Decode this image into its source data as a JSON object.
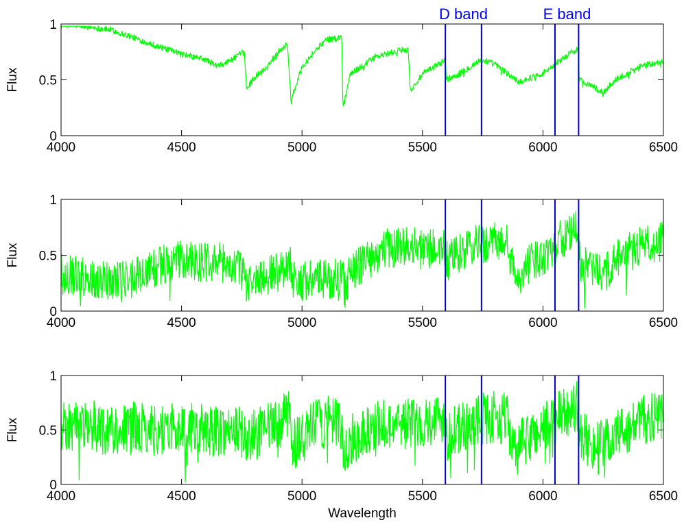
{
  "chart_data": {
    "type": "line",
    "colors": {
      "spectrum": "#00ff00",
      "band_lines": "#0000cc",
      "band_label": "#0000ff"
    },
    "band_labels": [
      {
        "text": "D band",
        "x": 5670
      },
      {
        "text": "E band",
        "x": 6100
      }
    ],
    "band_edges": [
      5595,
      5745,
      6050,
      6148
    ],
    "panels": [
      {
        "ylabel": "Flux",
        "xlabel": "",
        "xlim": [
          4000,
          6500
        ],
        "ylim": [
          0,
          1
        ],
        "xticks": [
          4000,
          4500,
          5000,
          5500,
          6000,
          6500
        ],
        "yticks": [
          0,
          0.5,
          1
        ],
        "grid": false,
        "noise": 0.04,
        "series": [
          {
            "x": [
              4000,
              4100,
              4200,
              4300,
              4400,
              4500,
              4600,
              4650,
              4700,
              4760,
              4770,
              4800,
              4850,
              4900,
              4940,
              4955,
              4960,
              5000,
              5050,
              5100,
              5165,
              5170,
              5200,
              5300,
              5440,
              5450,
              5500,
              5595,
              5600,
              5650,
              5700,
              5745,
              5800,
              5850,
              5900,
              6000,
              6100,
              6148,
              6150,
              6200,
              6250,
              6300,
              6400,
              6500
            ],
            "y": [
              1.0,
              0.98,
              0.95,
              0.88,
              0.8,
              0.73,
              0.68,
              0.62,
              0.67,
              0.75,
              0.42,
              0.52,
              0.6,
              0.75,
              0.82,
              0.28,
              0.35,
              0.62,
              0.75,
              0.86,
              0.88,
              0.25,
              0.55,
              0.7,
              0.78,
              0.4,
              0.55,
              0.68,
              0.5,
              0.55,
              0.62,
              0.68,
              0.64,
              0.56,
              0.48,
              0.56,
              0.72,
              0.78,
              0.5,
              0.45,
              0.38,
              0.5,
              0.62,
              0.66
            ]
          }
        ]
      },
      {
        "ylabel": "Flux",
        "xlabel": "",
        "xlim": [
          4000,
          6500
        ],
        "ylim": [
          0,
          1
        ],
        "xticks": [
          4000,
          4500,
          5000,
          5500,
          6000,
          6500
        ],
        "yticks": [
          0,
          0.5,
          1
        ],
        "grid": false,
        "noise": 0.26,
        "series": [
          {
            "x": [
              4000,
              4100,
              4200,
              4300,
              4400,
              4500,
              4600,
              4700,
              4760,
              4770,
              4800,
              4900,
              4950,
              4960,
              5000,
              5100,
              5165,
              5180,
              5200,
              5300,
              5400,
              5500,
              5595,
              5600,
              5650,
              5700,
              5745,
              5800,
              5850,
              5880,
              5890,
              5900,
              6000,
              6100,
              6148,
              6150,
              6200,
              6250,
              6300,
              6400,
              6500
            ],
            "y": [
              0.35,
              0.3,
              0.28,
              0.3,
              0.4,
              0.45,
              0.45,
              0.42,
              0.35,
              0.22,
              0.28,
              0.35,
              0.45,
              0.28,
              0.28,
              0.28,
              0.3,
              0.2,
              0.35,
              0.5,
              0.6,
              0.55,
              0.56,
              0.45,
              0.5,
              0.58,
              0.6,
              0.62,
              0.6,
              0.35,
              0.18,
              0.35,
              0.5,
              0.68,
              0.72,
              0.45,
              0.38,
              0.32,
              0.45,
              0.58,
              0.63
            ]
          }
        ]
      },
      {
        "ylabel": "Flux",
        "xlabel": "Wavelength",
        "xlim": [
          4000,
          6500
        ],
        "ylim": [
          0,
          1
        ],
        "xticks": [
          4000,
          4500,
          5000,
          5500,
          6000,
          6500
        ],
        "yticks": [
          0,
          0.5,
          1
        ],
        "grid": false,
        "noise": 0.34,
        "series": [
          {
            "x": [
              4000,
              4100,
              4200,
              4300,
              4400,
              4500,
              4600,
              4700,
              4760,
              4770,
              4800,
              4900,
              4950,
              4960,
              5000,
              5050,
              5100,
              5165,
              5170,
              5200,
              5300,
              5400,
              5500,
              5595,
              5600,
              5650,
              5700,
              5745,
              5800,
              5850,
              5880,
              5890,
              5900,
              6000,
              6100,
              6148,
              6150,
              6200,
              6250,
              6300,
              6400,
              6500
            ],
            "y": [
              0.55,
              0.55,
              0.5,
              0.52,
              0.5,
              0.52,
              0.5,
              0.5,
              0.48,
              0.35,
              0.45,
              0.55,
              0.65,
              0.38,
              0.4,
              0.55,
              0.58,
              0.55,
              0.28,
              0.4,
              0.55,
              0.55,
              0.58,
              0.62,
              0.45,
              0.5,
              0.56,
              0.6,
              0.62,
              0.6,
              0.35,
              0.2,
              0.35,
              0.52,
              0.68,
              0.72,
              0.45,
              0.38,
              0.35,
              0.45,
              0.58,
              0.62
            ]
          }
        ]
      }
    ]
  }
}
